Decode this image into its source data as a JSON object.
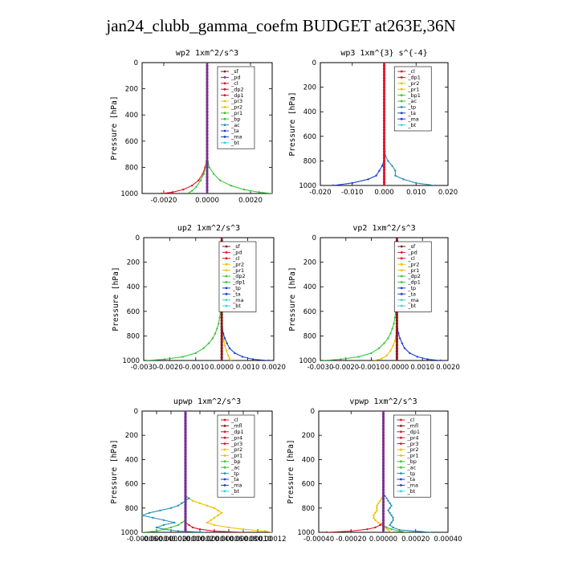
{
  "figure": {
    "title": "jan24_clubb_gamma_coefm  BUDGET at263E,36N"
  },
  "colors": {
    "maroon": "#8b1a1a",
    "purple": "#7b2e8e",
    "red": "#e0142a",
    "gold": "#f0c000",
    "green": "#3cc43c",
    "blue": "#1e3fd0",
    "teal": "#2a8fb8",
    "cyan": "#30d6e0"
  },
  "chart_data": [
    {
      "type": "line",
      "id": "wp2",
      "title": "wp2   1xm^2/s^3",
      "ylabel": "Pressure [hPa]",
      "xlim": [
        -0.003,
        0.003
      ],
      "ylim": [
        1000,
        0
      ],
      "xticks": [
        -0.002,
        0.0,
        0.002
      ],
      "xticklabels": [
        "-0.0020",
        "0.0000",
        "0.0020"
      ],
      "yticks": [
        0,
        200,
        400,
        600,
        800,
        1000
      ],
      "yticklabels": [
        "0",
        "200",
        "400",
        "600",
        "800",
        "1000"
      ],
      "legend": [
        "_sf",
        "_pd",
        "_cl",
        "_dp2",
        "_dp1",
        "_pr3",
        "_pr2",
        "_pr1",
        "_bp",
        "_ac",
        "_ta",
        "_ma",
        "_bt"
      ],
      "legend_colors": [
        "maroon",
        "purple",
        "red",
        "red",
        "red",
        "gold",
        "gold",
        "green",
        "green",
        "teal",
        "blue",
        "blue",
        "cyan"
      ],
      "series": [
        {
          "name": "_pr1",
          "color": "green",
          "p": [
            1000,
            990,
            970,
            940,
            900,
            850,
            800,
            760,
            730,
            700,
            650,
            0
          ],
          "x": [
            0.003,
            0.0024,
            0.0017,
            0.0011,
            0.0006,
            0.0003,
            0.0001,
            4e-05,
            1e-05,
            0,
            0,
            0
          ]
        },
        {
          "name": "_dp1",
          "color": "red",
          "p": [
            1000,
            990,
            970,
            940,
            900,
            850,
            800,
            760,
            730,
            700,
            650,
            0
          ],
          "x": [
            -0.0021,
            -0.0016,
            -0.0011,
            -0.0007,
            -0.0004,
            -0.0002,
            -0.0001,
            -3e-05,
            -1e-05,
            0,
            0,
            0
          ]
        },
        {
          "name": "_bp",
          "color": "green",
          "p": [
            1000,
            980,
            950,
            900,
            850,
            800,
            750,
            700,
            0
          ],
          "x": [
            -0.0009,
            -0.0007,
            -0.0005,
            -0.0003,
            -0.00015,
            -7e-05,
            -2e-05,
            0,
            0
          ]
        },
        {
          "name": "_bt",
          "color": "purple",
          "p": [
            1000,
            0
          ],
          "x": [
            0,
            0
          ]
        }
      ]
    },
    {
      "type": "line",
      "id": "wp3",
      "title": "wp3   1xm^{3} s^{-4}",
      "ylabel": "Pressure [hPa]",
      "xlim": [
        -0.02,
        0.02
      ],
      "ylim": [
        1000,
        0
      ],
      "xticks": [
        -0.02,
        -0.01,
        0.0,
        0.01,
        0.02
      ],
      "xticklabels": [
        "-0.020",
        "-0.010",
        "0.000",
        "0.010",
        "0.020"
      ],
      "yticks": [
        0,
        200,
        400,
        600,
        800,
        1000
      ],
      "yticklabels": [
        "0",
        "200",
        "400",
        "600",
        "800",
        "1000"
      ],
      "legend": [
        "_cl",
        "_dp1",
        "_pr2",
        "_pr1",
        "_bp1",
        "_ac",
        "_tp",
        "_ta",
        "_ma",
        "_bt"
      ],
      "legend_colors": [
        "red",
        "red",
        "gold",
        "gold",
        "green",
        "green",
        "teal",
        "blue",
        "blue",
        "cyan"
      ],
      "series": [
        {
          "name": "_tp",
          "color": "blue",
          "p": [
            1000,
            980,
            950,
            920,
            880,
            840,
            800,
            760,
            720,
            700,
            0
          ],
          "x": [
            -0.016,
            -0.01,
            -0.005,
            -0.0025,
            -0.0015,
            -0.0006,
            -0.0001,
            0.0003,
            0.0002,
            0,
            0
          ]
        },
        {
          "name": "_ta",
          "color": "teal",
          "p": [
            1000,
            980,
            950,
            920,
            880,
            840,
            800,
            760,
            720,
            700,
            0
          ],
          "x": [
            0.016,
            0.01,
            0.006,
            0.0035,
            0.0035,
            0.0025,
            0.0012,
            0.0004,
            0.0001,
            0,
            0
          ]
        },
        {
          "name": "_bt",
          "color": "red",
          "p": [
            1000,
            0
          ],
          "x": [
            0,
            0
          ]
        }
      ]
    },
    {
      "type": "line",
      "id": "up2",
      "title": "up2   1xm^2/s^3",
      "ylabel": "Pressure [hPa]",
      "xlim": [
        -0.003,
        0.002
      ],
      "ylim": [
        1000,
        0
      ],
      "xticks": [
        -0.003,
        -0.002,
        -0.001,
        0.0,
        0.001,
        0.002
      ],
      "xticklabels": [
        "-0.0030",
        "-0.0020",
        "-0.0010",
        "0.0000",
        "0.0010",
        "0.0020"
      ],
      "yticks": [
        0,
        200,
        400,
        600,
        800,
        1000
      ],
      "yticklabels": [
        "0",
        "200",
        "400",
        "600",
        "800",
        "1000"
      ],
      "legend": [
        "_sf",
        "_pd",
        "_cl",
        "_pr2",
        "_pr1",
        "_dp2",
        "_dp1",
        "_tp",
        "_ta",
        "_ma",
        "_bt"
      ],
      "legend_colors": [
        "maroon",
        "red",
        "red",
        "gold",
        "gold",
        "green",
        "green",
        "blue",
        "blue",
        "cyan",
        "cyan"
      ],
      "series": [
        {
          "name": "_dp1",
          "color": "green",
          "p": [
            1000,
            990,
            970,
            940,
            900,
            860,
            820,
            780,
            740,
            700,
            650,
            600,
            550,
            500,
            0
          ],
          "x": [
            -0.0029,
            -0.0022,
            -0.0015,
            -0.001,
            -0.0007,
            -0.0005,
            -0.00035,
            -0.00025,
            -0.00018,
            -0.00012,
            -8e-05,
            -5e-05,
            -2e-05,
            0,
            0
          ]
        },
        {
          "name": "_pr1",
          "color": "gold",
          "p": [
            1000,
            985,
            960,
            920,
            880,
            840,
            800,
            760,
            720,
            680,
            0
          ],
          "x": [
            0.00035,
            0.0003,
            0.00025,
            0.00018,
            0.00012,
            8e-05,
            5e-05,
            3e-05,
            1e-05,
            0,
            0
          ]
        },
        {
          "name": "_ta",
          "color": "blue",
          "p": [
            1000,
            990,
            970,
            940,
            900,
            860,
            820,
            780,
            740,
            700,
            0
          ],
          "x": [
            0.0018,
            0.0012,
            0.0008,
            0.0005,
            0.0003,
            0.0002,
            0.00012,
            6e-05,
            2e-05,
            0,
            0
          ]
        },
        {
          "name": "_bt",
          "color": "maroon",
          "p": [
            1000,
            0
          ],
          "x": [
            0,
            0
          ]
        }
      ]
    },
    {
      "type": "line",
      "id": "vp2",
      "title": "vp2   1xm^2/s^3",
      "ylabel": "Pressure [hPa]",
      "xlim": [
        -0.003,
        0.002
      ],
      "ylim": [
        1000,
        0
      ],
      "xticks": [
        -0.003,
        -0.002,
        -0.001,
        0.0,
        0.001,
        0.002
      ],
      "xticklabels": [
        "-0.0030",
        "-0.0020",
        "-0.0010",
        "0.0000",
        "0.0010",
        "0.0020"
      ],
      "yticks": [
        0,
        200,
        400,
        600,
        800,
        1000
      ],
      "yticklabels": [
        "0",
        "200",
        "400",
        "600",
        "800",
        "1000"
      ],
      "legend": [
        "_sf",
        "_pd",
        "_cl",
        "_pr2",
        "_pr1",
        "_dp2",
        "_dp1",
        "_tp",
        "_ta",
        "_ma",
        "_bt"
      ],
      "legend_colors": [
        "maroon",
        "red",
        "red",
        "gold",
        "gold",
        "green",
        "green",
        "blue",
        "blue",
        "cyan",
        "cyan"
      ],
      "series": [
        {
          "name": "_dp1",
          "color": "green",
          "p": [
            1000,
            990,
            970,
            940,
            900,
            860,
            820,
            780,
            740,
            700,
            650,
            600,
            550,
            500,
            0
          ],
          "x": [
            -0.0029,
            -0.0022,
            -0.0015,
            -0.001,
            -0.0007,
            -0.0005,
            -0.00035,
            -0.00025,
            -0.00018,
            -0.00012,
            -8e-05,
            -5e-05,
            -2e-05,
            0,
            0
          ]
        },
        {
          "name": "_pr1",
          "color": "gold",
          "p": [
            1000,
            985,
            960,
            920,
            880,
            840,
            800,
            760,
            720,
            680,
            0
          ],
          "x": [
            -0.0009,
            -0.0006,
            -0.0004,
            -0.00025,
            -0.00015,
            -8e-05,
            -4e-05,
            -2e-05,
            -1e-05,
            0,
            0
          ]
        },
        {
          "name": "_ta",
          "color": "blue",
          "p": [
            1000,
            990,
            970,
            940,
            900,
            860,
            820,
            780,
            740,
            700,
            0
          ],
          "x": [
            0.0017,
            0.0012,
            0.0008,
            0.0005,
            0.0003,
            0.0002,
            0.00012,
            6e-05,
            2e-05,
            0,
            0
          ]
        },
        {
          "name": "_bt",
          "color": "maroon",
          "p": [
            1000,
            0
          ],
          "x": [
            0,
            0
          ]
        }
      ]
    },
    {
      "type": "line",
      "id": "upwp",
      "title": "upwp   1xm^2/s^3",
      "ylabel": "Pressure [hPa]",
      "xlim": [
        -6e-05,
        0.00012
      ],
      "ylim": [
        1000,
        0
      ],
      "xticks": [
        -6e-05,
        -4e-05,
        -2e-05,
        0.0,
        2e-05,
        4e-05,
        6e-05,
        8e-05,
        0.0001,
        0.00012
      ],
      "xticklabels": [
        "-0.00006",
        "-0.00004",
        "-0.00002",
        "0.00000",
        "0.00002",
        "0.00004",
        "0.00006",
        "0.00008",
        "0.00010",
        "0.00012"
      ],
      "yticks": [
        0,
        200,
        400,
        600,
        800,
        1000
      ],
      "yticklabels": [
        "0",
        "200",
        "400",
        "600",
        "800",
        "1000"
      ],
      "legend": [
        "_cl",
        "_mfl",
        "_dp1",
        "_pr4",
        "_pr3",
        "_pr2",
        "_pr1",
        "_bp",
        "_ac",
        "_tp",
        "_ta",
        "_ma",
        "_bt"
      ],
      "legend_colors": [
        "red",
        "maroon",
        "red",
        "red",
        "red",
        "gold",
        "gold",
        "green",
        "green",
        "teal",
        "blue",
        "blue",
        "cyan"
      ],
      "series": [
        {
          "name": "_pr1",
          "color": "gold",
          "p": [
            1000,
            990,
            975,
            960,
            940,
            920,
            900,
            880,
            860,
            840,
            820,
            800,
            780,
            760,
            740,
            720,
            700,
            650,
            600,
            0
          ],
          "x": [
            0.00012,
            0.00011,
            8e-05,
            6e-05,
            4e-05,
            3e-05,
            3.5e-05,
            4e-05,
            4.5e-05,
            5e-05,
            4.5e-05,
            4e-05,
            3e-05,
            2e-05,
            1e-05,
            5e-06,
            0,
            0,
            0,
            0
          ]
        },
        {
          "name": "_tp",
          "color": "teal",
          "p": [
            1000,
            990,
            975,
            960,
            940,
            920,
            900,
            880,
            860,
            840,
            820,
            800,
            780,
            760,
            740,
            720,
            700,
            650,
            600,
            500,
            0
          ],
          "x": [
            3e-05,
            -1e-05,
            -3e-05,
            -4e-05,
            -3e-05,
            -1.5e-05,
            -3e-05,
            -4.5e-05,
            -6e-05,
            -5e-05,
            -3.5e-05,
            -2e-05,
            -1e-05,
            -5e-06,
            0,
            5e-06,
            0,
            0,
            0,
            0,
            0
          ]
        },
        {
          "name": "_bp",
          "color": "green",
          "p": [
            1000,
            990,
            975,
            960,
            940,
            920,
            900,
            880,
            860,
            840,
            820,
            800,
            0
          ],
          "x": [
            -6e-05,
            -4e-05,
            -3e-05,
            -2e-05,
            -1e-05,
            -5e-06,
            0,
            0,
            0,
            0,
            0,
            0,
            0
          ]
        },
        {
          "name": "_dp1",
          "color": "red",
          "p": [
            1000,
            990,
            975,
            960,
            940,
            920,
            900,
            880,
            860,
            0
          ],
          "x": [
            8e-05,
            4e-05,
            2e-05,
            1e-05,
            5e-06,
            0,
            0,
            0,
            0,
            0
          ]
        },
        {
          "name": "_bt",
          "color": "blue",
          "p": [
            1000,
            0
          ],
          "x": [
            0,
            0
          ]
        },
        {
          "name": "_ma",
          "color": "purple",
          "p": [
            1000,
            0
          ],
          "x": [
            0,
            0
          ]
        }
      ]
    },
    {
      "type": "line",
      "id": "vpwp",
      "title": "vpwp   1xm^2/s^3",
      "ylabel": "Pressure [hPa]",
      "xlim": [
        -0.0004,
        0.0004
      ],
      "ylim": [
        1000,
        0
      ],
      "xticks": [
        -0.0004,
        -0.0002,
        0.0,
        0.0002,
        0.0004
      ],
      "xticklabels": [
        "-0.00040",
        "-0.00020",
        "0.00000",
        "0.00020",
        "0.00040"
      ],
      "yticks": [
        0,
        200,
        400,
        600,
        800,
        1000
      ],
      "yticklabels": [
        "0",
        "200",
        "400",
        "600",
        "800",
        "1000"
      ],
      "legend": [
        "_cl",
        "_mfl",
        "_dp1",
        "_pr4",
        "_pr3",
        "_pr2",
        "_pr1",
        "_bp",
        "_ac",
        "_tp",
        "_ta",
        "_ma",
        "_bt"
      ],
      "legend_colors": [
        "red",
        "maroon",
        "red",
        "red",
        "red",
        "gold",
        "gold",
        "green",
        "green",
        "teal",
        "blue",
        "blue",
        "cyan"
      ],
      "series": [
        {
          "name": "_pr1",
          "color": "gold",
          "p": [
            1000,
            980,
            960,
            940,
            920,
            900,
            880,
            860,
            840,
            820,
            800,
            780,
            760,
            740,
            720,
            700,
            680,
            660,
            0
          ],
          "x": [
            5e-05,
            3e-05,
            1e-05,
            -1e-05,
            -3e-05,
            -5e-05,
            -6e-05,
            -6e-05,
            -5e-05,
            -4e-05,
            -4e-05,
            -4e-05,
            -3e-05,
            -2e-05,
            -1e-05,
            0,
            0,
            0,
            0
          ]
        },
        {
          "name": "_tp",
          "color": "teal",
          "p": [
            1000,
            980,
            960,
            940,
            920,
            900,
            880,
            860,
            840,
            820,
            800,
            780,
            760,
            740,
            720,
            700,
            680,
            0
          ],
          "x": [
            0.0003,
            0.0001,
            6e-05,
            4e-05,
            5e-05,
            6e-05,
            6e-05,
            5e-05,
            4e-05,
            3e-05,
            4e-05,
            5e-05,
            4e-05,
            3e-05,
            2e-05,
            1e-05,
            0,
            0
          ]
        },
        {
          "name": "_ta",
          "color": "red",
          "p": [
            1000,
            990,
            975,
            960,
            940,
            920,
            900,
            0
          ],
          "x": [
            -0.00035,
            -0.0002,
            -0.0001,
            -5e-05,
            -2e-05,
            0,
            0,
            0
          ]
        },
        {
          "name": "_bp",
          "color": "green",
          "p": [
            1000,
            990,
            975,
            960,
            940,
            0
          ],
          "x": [
            0.00015,
            0.0001,
            5e-05,
            2e-05,
            0,
            0
          ]
        },
        {
          "name": "_bt",
          "color": "purple",
          "p": [
            1000,
            0
          ],
          "x": [
            0,
            0
          ]
        }
      ]
    }
  ]
}
